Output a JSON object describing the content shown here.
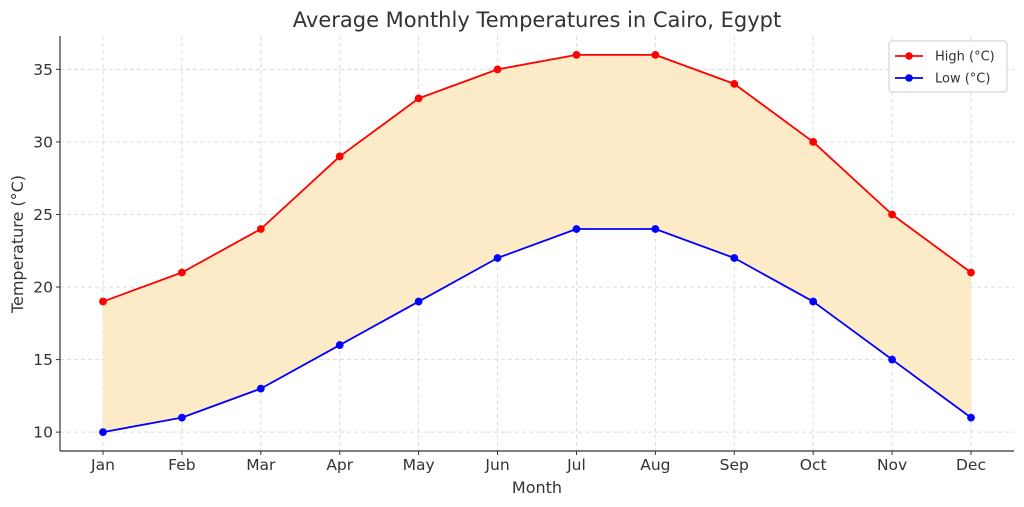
{
  "chart_data": {
    "type": "line",
    "title": "Average Monthly Temperatures in Cairo, Egypt",
    "xlabel": "Month",
    "ylabel": "Temperature (°C)",
    "categories": [
      "Jan",
      "Feb",
      "Mar",
      "Apr",
      "May",
      "Jun",
      "Jul",
      "Aug",
      "Sep",
      "Oct",
      "Nov",
      "Dec"
    ],
    "series": [
      {
        "name": "High (°C)",
        "color": "#ff0000",
        "values": [
          19,
          21,
          24,
          29,
          33,
          35,
          36,
          36,
          34,
          30,
          25,
          21
        ]
      },
      {
        "name": "Low (°C)",
        "color": "#0000ff",
        "values": [
          10,
          11,
          13,
          16,
          19,
          22,
          24,
          24,
          22,
          19,
          15,
          11
        ]
      }
    ],
    "fill_between": {
      "color": "#fdebc8",
      "between": [
        "High (°C)",
        "Low (°C)"
      ]
    },
    "yticks": [
      10,
      15,
      20,
      25,
      30,
      35
    ],
    "ylim": [
      8.7,
      37.3
    ],
    "grid": true,
    "legend_position": "top-right"
  }
}
